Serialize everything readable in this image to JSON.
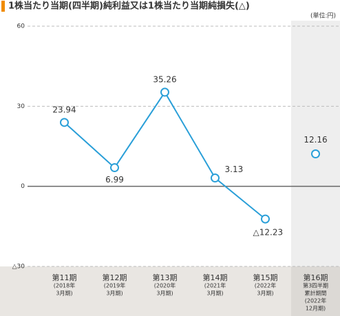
{
  "chart_data": {
    "type": "line",
    "title": "1株当たり当期(四半期)純利益又は1株当たり当期純損失(△)",
    "unit": "(単位:円)",
    "categories": [
      [
        "第11期",
        "(2018年",
        "3月期)"
      ],
      [
        "第12期",
        "(2019年",
        "3月期)"
      ],
      [
        "第13期",
        "(2020年",
        "3月期)"
      ],
      [
        "第14期",
        "(2021年",
        "3月期)"
      ],
      [
        "第15期",
        "(2022年",
        "3月期)"
      ],
      [
        "第16期",
        "第3四半期",
        "累計期間",
        "(2022年",
        "12月期)"
      ]
    ],
    "series": [
      {
        "color": "#2a9fd8",
        "values": [
          23.94,
          6.99,
          35.26,
          3.13,
          -12.23,
          null
        ],
        "value_labels": [
          "23.94",
          "6.99",
          "35.26",
          "3.13",
          "△12.23",
          null
        ]
      },
      {
        "color": "#2a9fd8",
        "values": [
          null,
          null,
          null,
          null,
          null,
          12.16
        ],
        "value_labels": [
          null,
          null,
          null,
          null,
          null,
          "12.16"
        ]
      }
    ],
    "ylim": [
      -30,
      60
    ],
    "yticks": [
      60,
      30,
      0,
      {
        "value": -30,
        "label": "△30"
      }
    ],
    "grid": true
  }
}
